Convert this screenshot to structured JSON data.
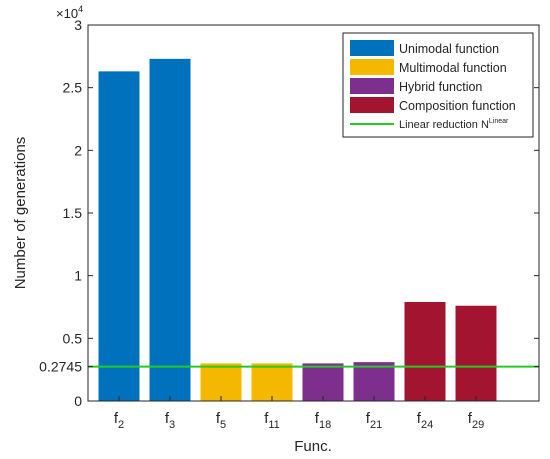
{
  "chart_data": {
    "type": "bar",
    "title": "",
    "xlabel": "Func.",
    "ylabel": "Number of generations",
    "y_exponent_label": "×10",
    "y_exponent_power": "4",
    "ylim": [
      0,
      30000
    ],
    "yticks": [
      {
        "value": 0,
        "label": "0"
      },
      {
        "value": 2745,
        "label": "0.2745"
      },
      {
        "value": 5000,
        "label": "0.5"
      },
      {
        "value": 10000,
        "label": "1"
      },
      {
        "value": 15000,
        "label": "1.5"
      },
      {
        "value": 20000,
        "label": "2"
      },
      {
        "value": 25000,
        "label": "2.5"
      },
      {
        "value": 30000,
        "label": "3"
      }
    ],
    "categories": [
      {
        "base": "f",
        "sub": "2"
      },
      {
        "base": "f",
        "sub": "3"
      },
      {
        "base": "f",
        "sub": "5"
      },
      {
        "base": "f",
        "sub": "11"
      },
      {
        "base": "f",
        "sub": "18"
      },
      {
        "base": "f",
        "sub": "21"
      },
      {
        "base": "f",
        "sub": "24"
      },
      {
        "base": "f",
        "sub": "29"
      }
    ],
    "values": [
      26300,
      27300,
      3000,
      3000,
      3000,
      3100,
      7900,
      7600
    ],
    "bar_groups": [
      0,
      0,
      1,
      1,
      2,
      2,
      3,
      3
    ],
    "groups": [
      {
        "name": "Unimodal function",
        "color": "#0072BD"
      },
      {
        "name": "Multimodal function",
        "color": "#F5B800"
      },
      {
        "name": "Hybrid function",
        "color": "#7E2F8E"
      },
      {
        "name": "Composition function",
        "color": "#A2142F"
      }
    ],
    "reference_line": {
      "name": "Linear reduction N",
      "name_sup": "Linear",
      "value": 2745,
      "color": "#22CC22"
    },
    "legend_position": "top-right",
    "grid": false
  }
}
